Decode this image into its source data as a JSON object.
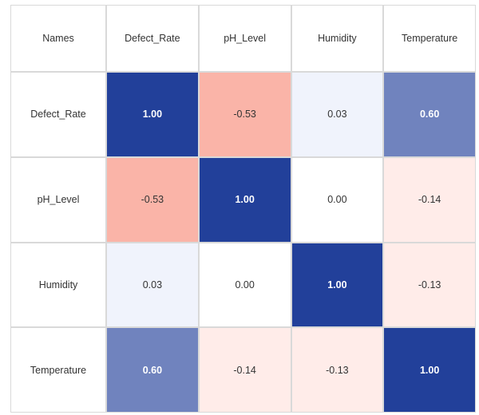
{
  "chart_data": {
    "type": "heatmap",
    "corner_label": "Names",
    "columns": [
      "Defect_Rate",
      "pH_Level",
      "Humidity",
      "Temperature"
    ],
    "rows": [
      "Defect_Rate",
      "pH_Level",
      "Humidity",
      "Temperature"
    ],
    "values": [
      [
        1.0,
        -0.53,
        0.03,
        0.6
      ],
      [
        -0.53,
        1.0,
        0.0,
        -0.14
      ],
      [
        0.03,
        0.0,
        1.0,
        -0.13
      ],
      [
        0.6,
        -0.14,
        -0.13,
        1.0
      ]
    ],
    "value_labels": [
      [
        "1.00",
        "-0.53",
        "0.03",
        "0.60"
      ],
      [
        "-0.53",
        "1.00",
        "0.00",
        "-0.14"
      ],
      [
        "0.03",
        "0.00",
        "1.00",
        "-0.13"
      ],
      [
        "0.60",
        "-0.14",
        "-0.13",
        "1.00"
      ]
    ],
    "colors": {
      "positive": "#22409a",
      "negative": "#fab4a8",
      "neutral": "#ffffff"
    }
  }
}
